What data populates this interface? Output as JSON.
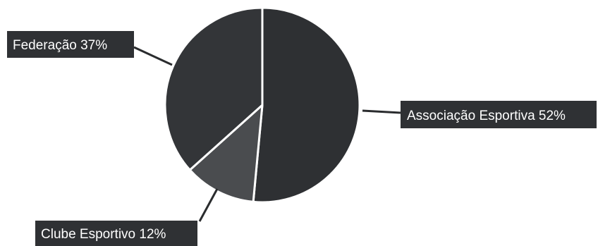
{
  "chart_data": {
    "type": "pie",
    "slices": [
      {
        "label": "Associação Esportiva 52%",
        "value": 52,
        "color": "#2e3033"
      },
      {
        "label": "Clube Esportivo 12%",
        "value": 12,
        "color": "#4a4c4f"
      },
      {
        "label": "Federação 37%",
        "value": 37,
        "color": "#333538"
      }
    ],
    "start_angle_deg": 0,
    "direction": "clockwise"
  }
}
